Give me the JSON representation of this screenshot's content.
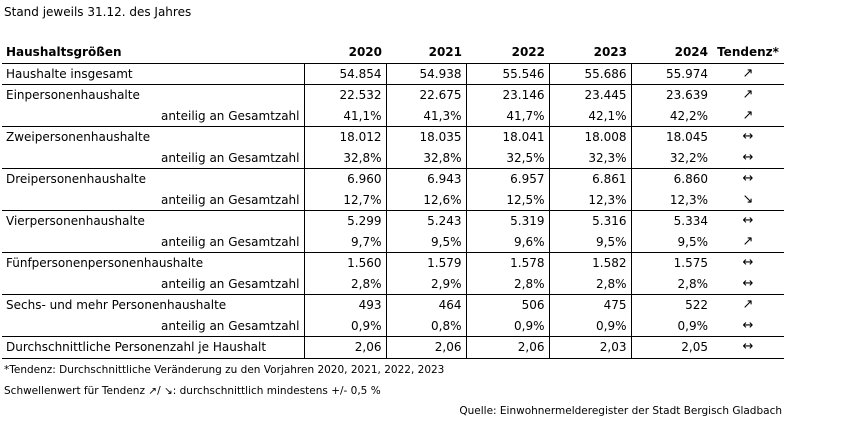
{
  "subtitle": "Stand jeweils 31.12. des Jahres",
  "table": {
    "label_header": "Haushaltsgrößen",
    "years": [
      "2020",
      "2021",
      "2022",
      "2023",
      "2024"
    ],
    "trend_header": "Tendenz*",
    "rows": [
      {
        "label": "Haushalte insgesamt",
        "values": [
          "54.854",
          "54.938",
          "55.546",
          "55.686",
          "55.974"
        ],
        "trend": "↗",
        "trend_icon": "arrow-up-right-icon",
        "kind": "main"
      },
      {
        "label": "Einpersonenhaushalte",
        "values": [
          "22.532",
          "22.675",
          "23.146",
          "23.445",
          "23.639"
        ],
        "trend": "↗",
        "trend_icon": "arrow-up-right-icon",
        "kind": "main"
      },
      {
        "label": "anteilig an Gesamtzahl",
        "values": [
          "41,1%",
          "41,3%",
          "41,7%",
          "42,1%",
          "42,2%"
        ],
        "trend": "↗",
        "trend_icon": "arrow-up-right-icon",
        "kind": "sub"
      },
      {
        "label": "Zweipersonenhaushalte",
        "values": [
          "18.012",
          "18.035",
          "18.041",
          "18.008",
          "18.045"
        ],
        "trend": "↔",
        "trend_icon": "arrow-left-right-icon",
        "kind": "main"
      },
      {
        "label": "anteilig an Gesamtzahl",
        "values": [
          "32,8%",
          "32,8%",
          "32,5%",
          "32,3%",
          "32,2%"
        ],
        "trend": "↔",
        "trend_icon": "arrow-left-right-icon",
        "kind": "sub"
      },
      {
        "label": "Dreipersonenhaushalte",
        "values": [
          "6.960",
          "6.943",
          "6.957",
          "6.861",
          "6.860"
        ],
        "trend": "↔",
        "trend_icon": "arrow-left-right-icon",
        "kind": "main"
      },
      {
        "label": "anteilig an Gesamtzahl",
        "values": [
          "12,7%",
          "12,6%",
          "12,5%",
          "12,3%",
          "12,3%"
        ],
        "trend": "↘",
        "trend_icon": "arrow-down-right-icon",
        "kind": "sub"
      },
      {
        "label": "Vierpersonenhaushalte",
        "values": [
          "5.299",
          "5.243",
          "5.319",
          "5.316",
          "5.334"
        ],
        "trend": "↔",
        "trend_icon": "arrow-left-right-icon",
        "kind": "main"
      },
      {
        "label": "anteilig an Gesamtzahl",
        "values": [
          "9,7%",
          "9,5%",
          "9,6%",
          "9,5%",
          "9,5%"
        ],
        "trend": "↗",
        "trend_icon": "arrow-up-right-icon",
        "kind": "sub"
      },
      {
        "label": "Fünfpersonenpersonenhaushalte",
        "values": [
          "1.560",
          "1.579",
          "1.578",
          "1.582",
          "1.575"
        ],
        "trend": "↔",
        "trend_icon": "arrow-left-right-icon",
        "kind": "main"
      },
      {
        "label": "anteilig an Gesamtzahl",
        "values": [
          "2,8%",
          "2,9%",
          "2,8%",
          "2,8%",
          "2,8%"
        ],
        "trend": "↔",
        "trend_icon": "arrow-left-right-icon",
        "kind": "sub"
      },
      {
        "label": "Sechs- und mehr Personenhaushalte",
        "values": [
          "493",
          "464",
          "506",
          "475",
          "522"
        ],
        "trend": "↗",
        "trend_icon": "arrow-up-right-icon",
        "kind": "main"
      },
      {
        "label": "anteilig an Gesamtzahl",
        "values": [
          "0,9%",
          "0,8%",
          "0,9%",
          "0,9%",
          "0,9%"
        ],
        "trend": "↔",
        "trend_icon": "arrow-left-right-icon",
        "kind": "sub"
      },
      {
        "label": "Durchschnittliche Personenzahl je Haushalt",
        "values": [
          "2,06",
          "2,06",
          "2,06",
          "2,03",
          "2,05"
        ],
        "trend": "↔",
        "trend_icon": "arrow-left-right-icon",
        "kind": "main"
      }
    ]
  },
  "footnotes": [
    "*Tendenz: Durchschnittliche Veränderung zu den Vorjahren 2020, 2021, 2022, 2023",
    "Schwellenwert für Tendenz ↗/ ↘: durchschnittlich mindestens +/- 0,5 %"
  ],
  "source": "Quelle: Einwohnermelderegister der Stadt Bergisch Gladbach"
}
